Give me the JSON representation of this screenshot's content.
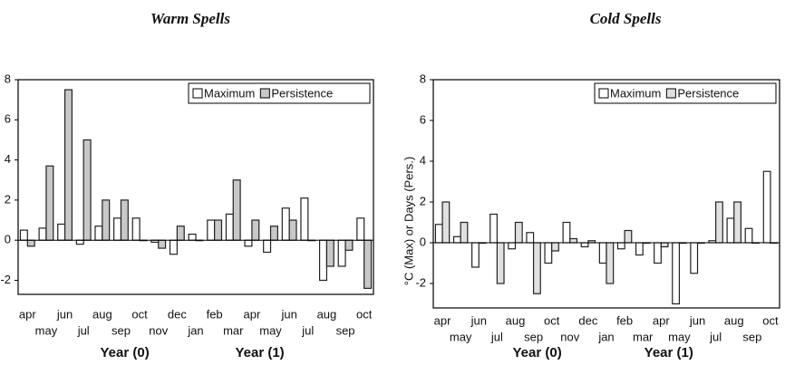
{
  "chart_data": [
    {
      "type": "bar",
      "title": "Warm Spells",
      "categories": [
        "apr",
        "may",
        "jun",
        "jul",
        "aug",
        "sep",
        "oct",
        "nov",
        "dec",
        "jan",
        "feb",
        "mar",
        "apr",
        "may",
        "jun",
        "jul",
        "aug",
        "sep",
        "oct"
      ],
      "x_labels": [
        "Year (0)",
        "Year (1)"
      ],
      "series": [
        {
          "name": "Maximum",
          "color": "#ffffff",
          "values": [
            0.5,
            0.6,
            0.8,
            -0.2,
            0.7,
            1.1,
            1.1,
            -0.1,
            -0.7,
            0.3,
            1.0,
            1.3,
            -0.3,
            -0.6,
            1.6,
            2.1,
            -2.0,
            -1.3,
            1.1
          ]
        },
        {
          "name": "Persistence",
          "color": "#c8c8c8",
          "values": [
            -0.3,
            3.7,
            7.5,
            5.0,
            2.0,
            2.0,
            0.0,
            -0.4,
            0.7,
            0.0,
            1.0,
            3.0,
            1.0,
            0.7,
            1.0,
            0.0,
            -1.3,
            -0.5,
            -2.4
          ]
        }
      ],
      "ylim": [
        -2.7,
        8
      ],
      "yticks": [
        -2,
        0,
        2,
        4,
        6,
        8
      ],
      "legend": "upper right"
    },
    {
      "type": "bar",
      "title": "Cold Spells",
      "ylabel": "°C (Max) or Days (Pers.)",
      "categories": [
        "apr",
        "may",
        "jun",
        "jul",
        "aug",
        "sep",
        "oct",
        "nov",
        "dec",
        "jan",
        "feb",
        "mar",
        "apr",
        "may",
        "jun",
        "jul",
        "aug",
        "sep",
        "oct"
      ],
      "x_labels": [
        "Year (0)",
        "Year (1)"
      ],
      "series": [
        {
          "name": "Maximum",
          "color": "#ffffff",
          "values": [
            0.9,
            0.3,
            -1.2,
            1.4,
            -0.3,
            0.5,
            -1.0,
            1.0,
            -0.2,
            -1.0,
            -0.3,
            -0.6,
            -1.0,
            -3.0,
            -1.5,
            0.1,
            1.2,
            0.7,
            3.5
          ]
        },
        {
          "name": "Persistence",
          "color": "#e0e0e0",
          "values": [
            2.0,
            1.0,
            0.0,
            -2.0,
            1.0,
            -2.5,
            -0.4,
            0.2,
            0.1,
            -2.0,
            0.6,
            0.0,
            -0.2,
            0.0,
            0.0,
            2.0,
            2.0,
            0.0,
            0.0
          ]
        }
      ],
      "ylim": [
        -3.2,
        8
      ],
      "yticks": [
        -2,
        0,
        2,
        4,
        6,
        8
      ],
      "legend": "upper right"
    }
  ]
}
